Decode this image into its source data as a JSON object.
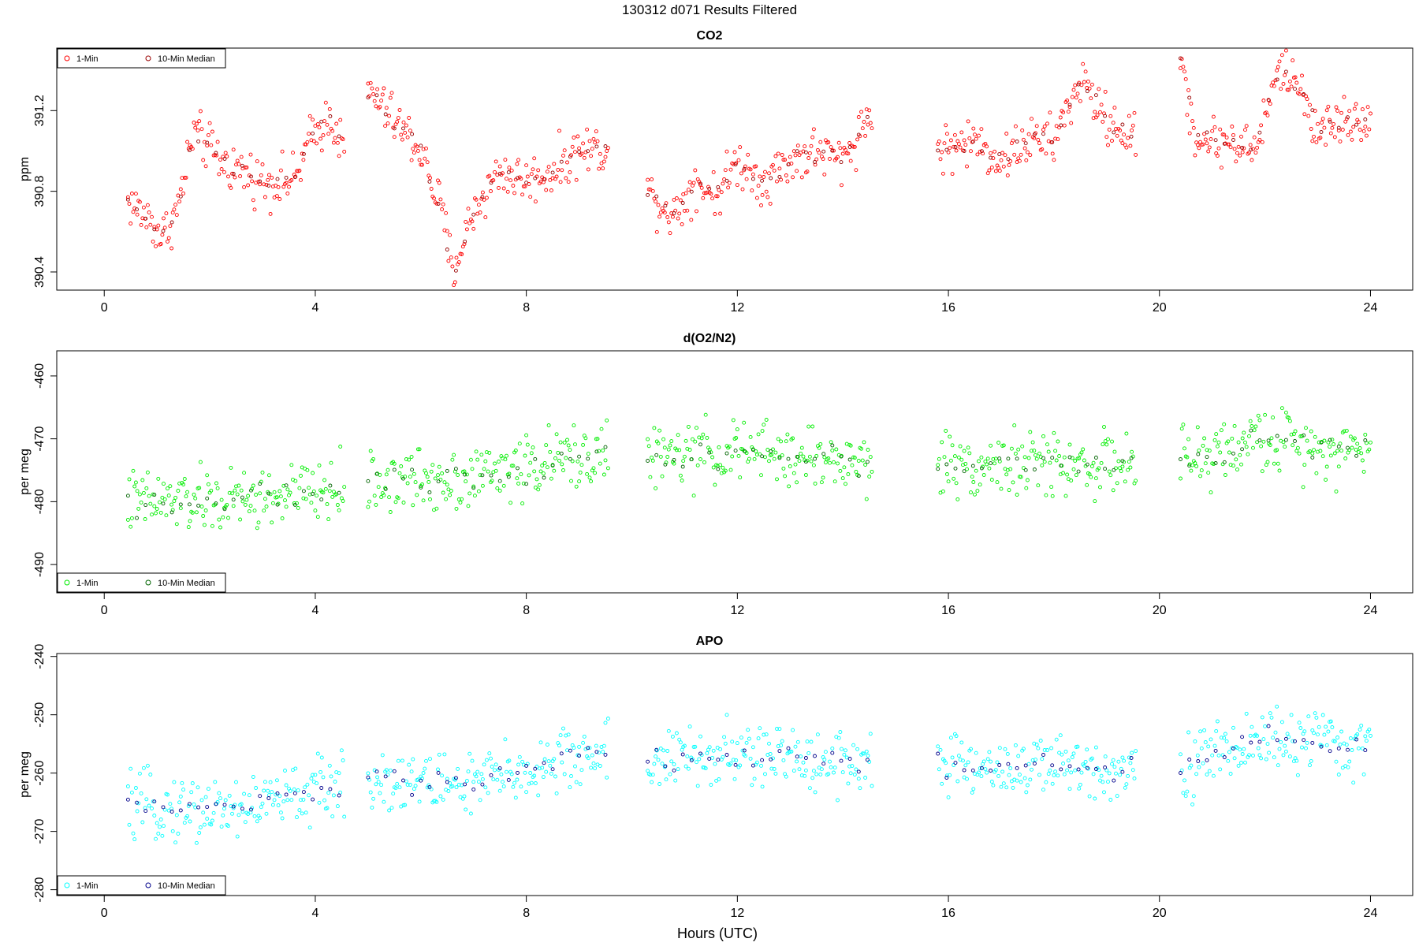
{
  "figure": {
    "title": "130312   d071   Results Filtered",
    "xlabel": "Hours (UTC)"
  },
  "chart_data": [
    {
      "type": "scatter",
      "title": "CO2",
      "xlabel": "",
      "ylabel": "ppm",
      "xlim": [
        -0.9,
        24.8
      ],
      "ylim": [
        390.31,
        391.51
      ],
      "xticks": [
        0,
        4,
        8,
        12,
        16,
        20,
        24
      ],
      "yticks": [
        390.4,
        390.8,
        391.2
      ],
      "ytick_labels": [
        "390.4",
        "390.8",
        "391.2"
      ],
      "legend": {
        "position": "top-left",
        "entries": [
          "1-Min",
          "10-Min Median"
        ]
      },
      "grid": false,
      "series": [
        {
          "name": "1-Min",
          "color": "#ff0000",
          "marker": "open-circle",
          "segments": [
            [
              0.45,
              4.55
            ],
            [
              5.0,
              9.55
            ],
            [
              10.3,
              14.55
            ],
            [
              15.8,
              19.55
            ],
            [
              20.4,
              24.0
            ]
          ],
          "trend": [
            [
              0.45,
              390.75
            ],
            [
              0.9,
              390.65
            ],
            [
              1.1,
              390.57
            ],
            [
              1.4,
              390.72
            ],
            [
              1.7,
              391.1
            ],
            [
              2.2,
              390.95
            ],
            [
              3.0,
              390.85
            ],
            [
              3.6,
              390.85
            ],
            [
              3.9,
              391.05
            ],
            [
              4.3,
              391.18
            ],
            [
              4.55,
              390.98
            ],
            [
              5.0,
              391.3
            ],
            [
              5.5,
              391.15
            ],
            [
              6.0,
              391.0
            ],
            [
              6.4,
              390.7
            ],
            [
              6.6,
              390.4
            ],
            [
              7.0,
              390.7
            ],
            [
              7.5,
              390.9
            ],
            [
              8.0,
              390.85
            ],
            [
              8.5,
              390.9
            ],
            [
              9.0,
              391.0
            ],
            [
              9.55,
              391.02
            ],
            [
              10.3,
              390.8
            ],
            [
              10.8,
              390.68
            ],
            [
              11.2,
              390.85
            ],
            [
              11.6,
              390.78
            ],
            [
              12.0,
              390.95
            ],
            [
              12.5,
              390.85
            ],
            [
              13.0,
              390.95
            ],
            [
              13.5,
              391.0
            ],
            [
              14.0,
              390.95
            ],
            [
              14.55,
              391.2
            ],
            [
              15.8,
              391.0
            ],
            [
              16.5,
              391.05
            ],
            [
              17.0,
              390.95
            ],
            [
              17.5,
              391.05
            ],
            [
              18.0,
              391.05
            ],
            [
              18.5,
              391.35
            ],
            [
              19.0,
              391.15
            ],
            [
              19.55,
              391.05
            ],
            [
              20.4,
              391.45
            ],
            [
              20.7,
              391.05
            ],
            [
              21.4,
              391.05
            ],
            [
              21.8,
              391.0
            ],
            [
              22.3,
              391.42
            ],
            [
              22.7,
              391.3
            ],
            [
              23.0,
              391.1
            ],
            [
              23.5,
              391.15
            ],
            [
              24.0,
              391.17
            ]
          ],
          "noise": 0.12
        },
        {
          "name": "10-Min Median",
          "color": "#990000",
          "marker": "open-circle",
          "segments": [
            [
              0.45,
              4.55
            ],
            [
              5.0,
              9.55
            ],
            [
              10.3,
              14.55
            ],
            [
              15.8,
              19.55
            ],
            [
              20.4,
              24.0
            ]
          ],
          "trend": [
            [
              0.45,
              390.75
            ],
            [
              0.9,
              390.65
            ],
            [
              1.1,
              390.57
            ],
            [
              1.4,
              390.72
            ],
            [
              1.7,
              391.1
            ],
            [
              2.2,
              390.95
            ],
            [
              3.0,
              390.85
            ],
            [
              3.6,
              390.85
            ],
            [
              3.9,
              391.05
            ],
            [
              4.3,
              391.18
            ],
            [
              4.55,
              390.98
            ],
            [
              5.0,
              391.3
            ],
            [
              5.5,
              391.15
            ],
            [
              6.0,
              391.0
            ],
            [
              6.4,
              390.7
            ],
            [
              6.6,
              390.4
            ],
            [
              7.0,
              390.7
            ],
            [
              7.5,
              390.9
            ],
            [
              8.0,
              390.85
            ],
            [
              8.5,
              390.9
            ],
            [
              9.0,
              391.0
            ],
            [
              9.55,
              391.02
            ],
            [
              10.3,
              390.8
            ],
            [
              10.8,
              390.68
            ],
            [
              11.2,
              390.85
            ],
            [
              11.6,
              390.78
            ],
            [
              12.0,
              390.95
            ],
            [
              12.5,
              390.85
            ],
            [
              13.0,
              390.95
            ],
            [
              13.5,
              391.0
            ],
            [
              14.0,
              390.95
            ],
            [
              14.55,
              391.2
            ],
            [
              15.8,
              391.0
            ],
            [
              16.5,
              391.05
            ],
            [
              17.0,
              390.95
            ],
            [
              17.5,
              391.05
            ],
            [
              18.0,
              391.05
            ],
            [
              18.5,
              391.35
            ],
            [
              19.0,
              391.15
            ],
            [
              19.55,
              391.05
            ],
            [
              20.4,
              391.45
            ],
            [
              20.7,
              391.05
            ],
            [
              21.4,
              391.05
            ],
            [
              21.8,
              391.0
            ],
            [
              22.3,
              391.42
            ],
            [
              22.7,
              391.3
            ],
            [
              23.0,
              391.1
            ],
            [
              23.5,
              391.15
            ],
            [
              24.0,
              391.17
            ]
          ],
          "noise": 0.04
        }
      ]
    },
    {
      "type": "scatter",
      "title": "d(O2/N2)",
      "xlabel": "",
      "ylabel": "per meg",
      "xlim": [
        -0.9,
        24.8
      ],
      "ylim": [
        -494.5,
        -456.0
      ],
      "xticks": [
        0,
        4,
        8,
        12,
        16,
        20,
        24
      ],
      "yticks": [
        -490,
        -480,
        -470,
        -460
      ],
      "ytick_labels": [
        "-490",
        "-480",
        "-470",
        "-460"
      ],
      "legend": {
        "position": "bottom-left",
        "entries": [
          "1-Min",
          "10-Min Median"
        ]
      },
      "grid": false,
      "series": [
        {
          "name": "1-Min",
          "color": "#00ee00",
          "marker": "open-circle",
          "segments": [
            [
              0.45,
              4.55
            ],
            [
              5.0,
              9.55
            ],
            [
              10.3,
              14.55
            ],
            [
              15.8,
              19.55
            ],
            [
              20.4,
              24.0
            ]
          ],
          "trend": [
            [
              0.45,
              -480
            ],
            [
              2.5,
              -480
            ],
            [
              4.55,
              -478
            ],
            [
              5.0,
              -477
            ],
            [
              7.0,
              -476
            ],
            [
              9.55,
              -472
            ],
            [
              10.3,
              -473
            ],
            [
              12.0,
              -472
            ],
            [
              14.55,
              -474
            ],
            [
              15.8,
              -474
            ],
            [
              17.5,
              -474
            ],
            [
              19.55,
              -474
            ],
            [
              20.4,
              -474
            ],
            [
              22.0,
              -470
            ],
            [
              24.0,
              -472
            ]
          ],
          "noise": 5.0
        },
        {
          "name": "10-Min Median",
          "color": "#006400",
          "marker": "open-circle",
          "segments": [
            [
              0.45,
              4.55
            ],
            [
              5.0,
              9.55
            ],
            [
              10.3,
              14.55
            ],
            [
              15.8,
              19.55
            ],
            [
              20.4,
              24.0
            ]
          ],
          "trend": [
            [
              0.45,
              -480
            ],
            [
              2.5,
              -480
            ],
            [
              4.55,
              -478
            ],
            [
              5.0,
              -477
            ],
            [
              7.0,
              -476
            ],
            [
              9.55,
              -472
            ],
            [
              10.3,
              -473
            ],
            [
              12.0,
              -472
            ],
            [
              14.55,
              -474
            ],
            [
              15.8,
              -474
            ],
            [
              17.5,
              -474
            ],
            [
              19.55,
              -474
            ],
            [
              20.4,
              -474
            ],
            [
              22.0,
              -470
            ],
            [
              24.0,
              -472
            ]
          ],
          "noise": 2.0
        }
      ]
    },
    {
      "type": "scatter",
      "title": "APO",
      "xlabel": "Hours (UTC)",
      "ylabel": "per meg",
      "xlim": [
        -0.9,
        24.8
      ],
      "ylim": [
        -281.0,
        -239.5
      ],
      "xticks": [
        0,
        4,
        8,
        12,
        16,
        20,
        24
      ],
      "yticks": [
        -280,
        -270,
        -260,
        -250,
        -240
      ],
      "ytick_labels": [
        "-280",
        "-270",
        "-260",
        "-250",
        "-240"
      ],
      "legend": {
        "position": "bottom-left",
        "entries": [
          "1-Min",
          "10-Min Median"
        ]
      },
      "grid": false,
      "series": [
        {
          "name": "1-Min",
          "color": "#00ffff",
          "marker": "open-circle",
          "segments": [
            [
              0.45,
              4.55
            ],
            [
              5.0,
              9.55
            ],
            [
              10.3,
              14.55
            ],
            [
              15.8,
              19.55
            ],
            [
              20.4,
              24.0
            ]
          ],
          "trend": [
            [
              0.45,
              -266
            ],
            [
              2.5,
              -266
            ],
            [
              4.55,
              -262
            ],
            [
              5.0,
              -261
            ],
            [
              7.0,
              -262
            ],
            [
              9.55,
              -256
            ],
            [
              10.3,
              -258
            ],
            [
              12.0,
              -257
            ],
            [
              14.55,
              -258
            ],
            [
              15.8,
              -259
            ],
            [
              17.5,
              -259
            ],
            [
              19.55,
              -259
            ],
            [
              20.4,
              -259
            ],
            [
              22.0,
              -254
            ],
            [
              24.0,
              -256
            ]
          ],
          "noise": 5.5
        },
        {
          "name": "10-Min Median",
          "color": "#00008b",
          "marker": "open-circle",
          "segments": [
            [
              0.45,
              4.55
            ],
            [
              5.0,
              9.55
            ],
            [
              10.3,
              14.55
            ],
            [
              15.8,
              19.55
            ],
            [
              20.4,
              24.0
            ]
          ],
          "trend": [
            [
              0.45,
              -266
            ],
            [
              2.5,
              -266
            ],
            [
              4.55,
              -262
            ],
            [
              5.0,
              -261
            ],
            [
              7.0,
              -262
            ],
            [
              9.55,
              -256
            ],
            [
              10.3,
              -258
            ],
            [
              12.0,
              -257
            ],
            [
              14.55,
              -258
            ],
            [
              15.8,
              -259
            ],
            [
              17.5,
              -259
            ],
            [
              19.55,
              -259
            ],
            [
              20.4,
              -259
            ],
            [
              22.0,
              -254
            ],
            [
              24.0,
              -256
            ]
          ],
          "noise": 2.0
        }
      ]
    }
  ]
}
